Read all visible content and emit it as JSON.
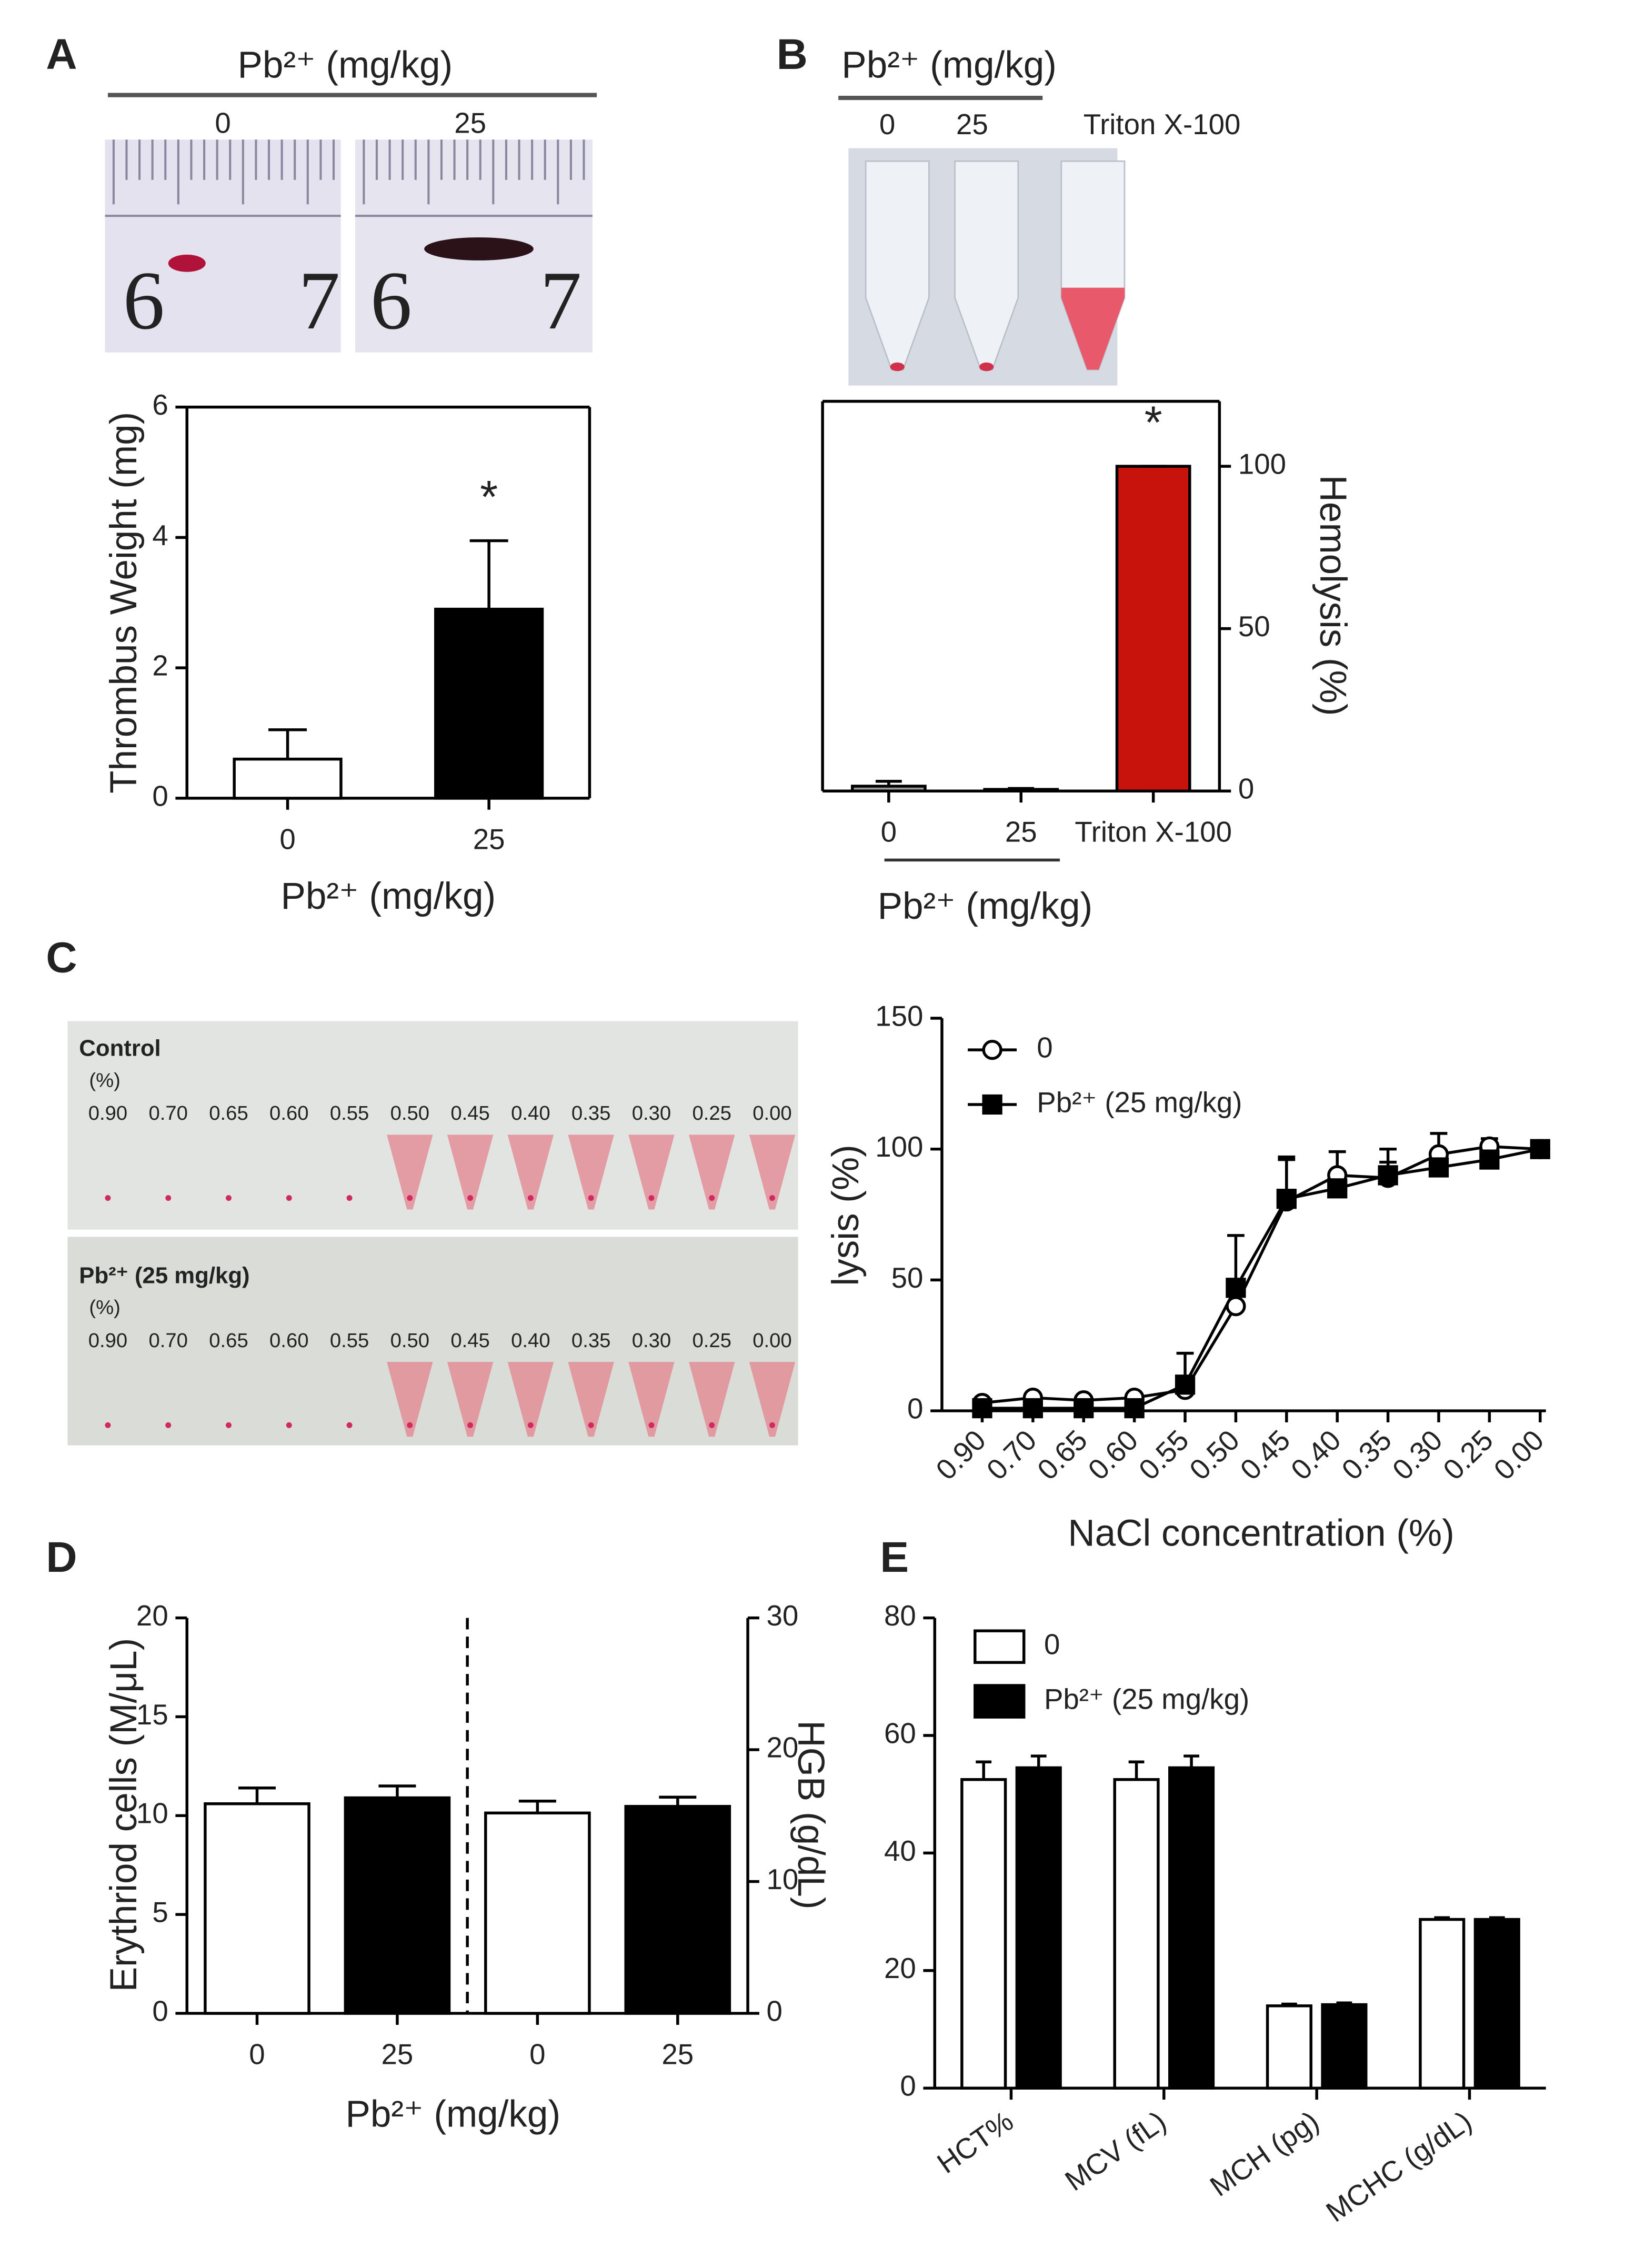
{
  "panels": [
    "A",
    "B",
    "C",
    "D",
    "E"
  ],
  "photos": {
    "A": {
      "header": "Pb²⁺ (mg/kg)",
      "labels": [
        "0",
        "25"
      ],
      "ruler": [
        "6",
        "7"
      ]
    },
    "B": {
      "header": "Pb²⁺ (mg/kg)",
      "labels": [
        "0",
        "25",
        "Triton X-100"
      ]
    },
    "C": {
      "rows": [
        {
          "title": "Control",
          "unit": "(%)",
          "labels": [
            "0.90",
            "0.70",
            "0.65",
            "0.60",
            "0.55",
            "0.50",
            "0.45",
            "0.40",
            "0.35",
            "0.30",
            "0.25",
            "0.00"
          ]
        },
        {
          "title": "Pb²⁺ (25 mg/kg)",
          "unit": "(%)",
          "labels": [
            "0.90",
            "0.70",
            "0.65",
            "0.60",
            "0.55",
            "0.50",
            "0.45",
            "0.40",
            "0.35",
            "0.30",
            "0.25",
            "0.00"
          ]
        }
      ]
    }
  },
  "chart_data": [
    {
      "type": "bar",
      "ylabel": "Thrombus Weight (mg)",
      "xlabel": "Pb²⁺ (mg/kg)",
      "categories": [
        "0",
        "25"
      ],
      "values": [
        0.6,
        2.9
      ],
      "errors": [
        0.45,
        1.05
      ],
      "colors": [
        "#ffffff",
        "#000000"
      ],
      "ylim": [
        0,
        6
      ],
      "yticks": [
        0,
        2,
        4,
        6
      ],
      "annotation": "*"
    },
    {
      "type": "bar",
      "ylabel": "Hemolysis (%)",
      "xlabel": "Pb²⁺ (mg/kg)",
      "yaxis_position": "right",
      "categories": [
        "0",
        "25",
        "Triton X-100"
      ],
      "values": [
        1.5,
        0.5,
        100
      ],
      "errors": [
        1.5,
        0.3,
        0
      ],
      "colors": [
        "#9a9a9a",
        "#9a9a9a",
        "#c8120c"
      ],
      "ylim": [
        0,
        120
      ],
      "yticks": [
        0,
        50,
        100
      ],
      "annotation": "*"
    },
    {
      "type": "line",
      "ylabel": "lysis (%)",
      "xlabel": "NaCl concentration (%)",
      "legend": "upper left",
      "categories": [
        "0.90",
        "0.70",
        "0.65",
        "0.60",
        "0.55",
        "0.50",
        "0.45",
        "0.40",
        "0.35",
        "0.30",
        "0.25",
        "0.00"
      ],
      "series": [
        {
          "name": "0",
          "color": "#000000",
          "marker": "open-circle",
          "values": [
            3,
            5,
            4,
            5,
            8,
            40,
            80,
            90,
            89,
            98,
            101,
            100
          ],
          "errors": [
            1,
            1,
            1,
            1,
            2,
            8,
            17,
            9,
            11,
            8,
            3,
            1
          ]
        },
        {
          "name": "Pb²⁺ (25 mg/kg)",
          "color": "#000000",
          "marker": "filled-square",
          "values": [
            1,
            1,
            1,
            1,
            10,
            47,
            81,
            85,
            90,
            93,
            96,
            100
          ],
          "errors": [
            1,
            1,
            1,
            1,
            12,
            20,
            15,
            5,
            5,
            5,
            2,
            1
          ]
        }
      ],
      "ylim": [
        0,
        150
      ],
      "yticks": [
        0,
        50,
        100,
        150
      ]
    },
    {
      "type": "bar",
      "ylabel": "Erythriod cells (M/μL)",
      "y2label": "HGB (g/dL)",
      "xlabel": "Pb²⁺ (mg/kg)",
      "categories": [
        "0",
        "25",
        "0",
        "25"
      ],
      "colors": [
        "#ffffff",
        "#000000",
        "#ffffff",
        "#000000"
      ],
      "series": [
        {
          "values": [
            10.6,
            10.9,
            null,
            null
          ],
          "errors": [
            0.8,
            0.6,
            null,
            null
          ],
          "axis": "y"
        },
        {
          "values": [
            null,
            null,
            15.2,
            15.7
          ],
          "errors": [
            null,
            null,
            0.9,
            0.7
          ],
          "axis": "y2"
        }
      ],
      "ylim": [
        0,
        20
      ],
      "yticks": [
        0,
        5,
        10,
        15,
        20
      ],
      "y2lim": [
        0,
        30
      ],
      "y2ticks": [
        0,
        10,
        20,
        30
      ]
    },
    {
      "type": "bar",
      "legend": "upper left",
      "categories": [
        "HCT%",
        "MCV (fL)",
        "MCH (pg)",
        "MCHC (g/dL)"
      ],
      "series": [
        {
          "name": "0",
          "color": "#ffffff",
          "values": [
            52.5,
            52.5,
            14,
            28.7
          ],
          "errors": [
            3,
            3,
            0.3,
            0.3
          ]
        },
        {
          "name": "Pb²⁺ (25 mg/kg)",
          "color": "#000000",
          "values": [
            54.5,
            54.5,
            14.2,
            28.7
          ],
          "errors": [
            2,
            2,
            0.3,
            0.3
          ]
        }
      ],
      "ylim": [
        0,
        80
      ],
      "yticks": [
        0,
        20,
        40,
        60,
        80
      ]
    }
  ]
}
